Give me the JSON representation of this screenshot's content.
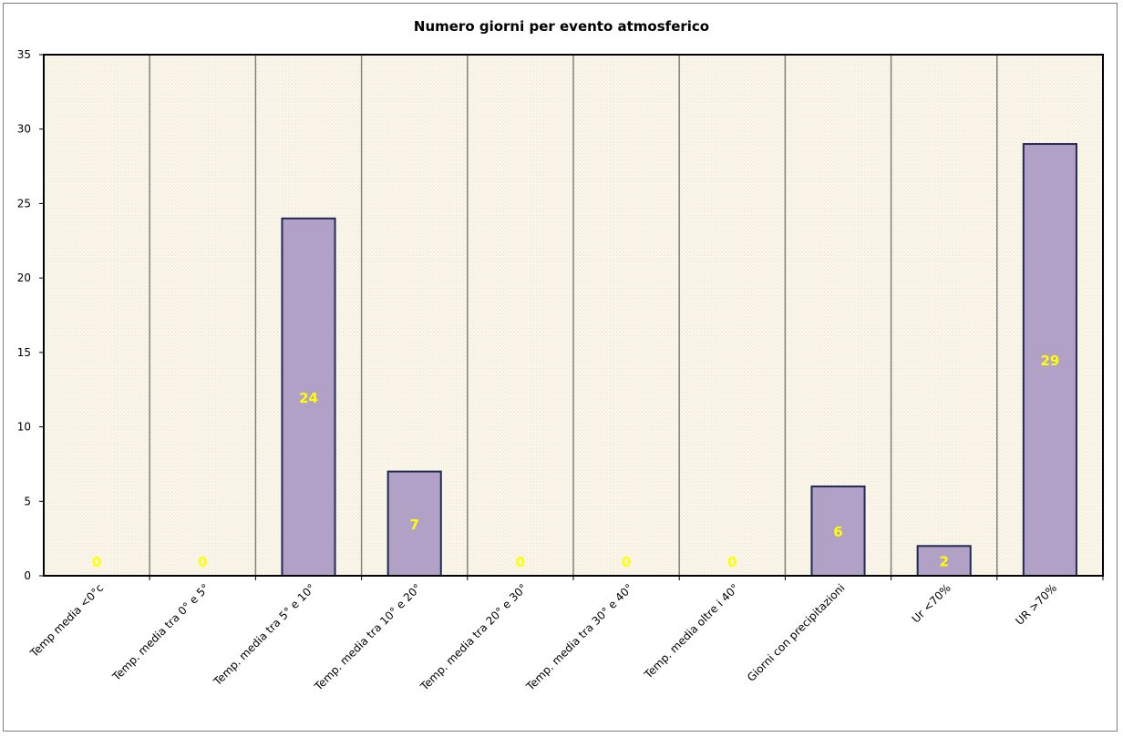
{
  "chart_data": {
    "type": "bar",
    "title": "Numero giorni  per evento atmosferico",
    "categories": [
      "Temp media <0°c",
      "Temp. media tra 0° e 5°",
      "Temp. media tra 5° e 10°",
      "Temp. media tra 10° e 20°",
      "Temp. media tra 20° e 30°",
      "Temp. media tra 30° e 40°",
      "Temp. media oltre i 40°",
      "Giorni con precipitazioni",
      "Ur  <70%",
      "UR >70%"
    ],
    "series": [
      {
        "values": [
          0,
          0,
          24,
          7,
          0,
          0,
          0,
          6,
          2,
          29
        ]
      }
    ],
    "data_labels": [
      "0",
      "0",
      "24",
      "7",
      "0",
      "0",
      "0",
      "6",
      "2",
      "29"
    ],
    "ylim": [
      0,
      35
    ],
    "yticks": [
      0,
      5,
      10,
      15,
      20,
      25,
      30,
      35
    ],
    "grid": "vertical",
    "legend": "none",
    "colors": {
      "bar_fill": "#b2a1c7",
      "bar_stroke": "#1f2a55",
      "plot_bg": "#fbf6ea",
      "data_label": "#ffff00",
      "grid": "#808080"
    }
  }
}
